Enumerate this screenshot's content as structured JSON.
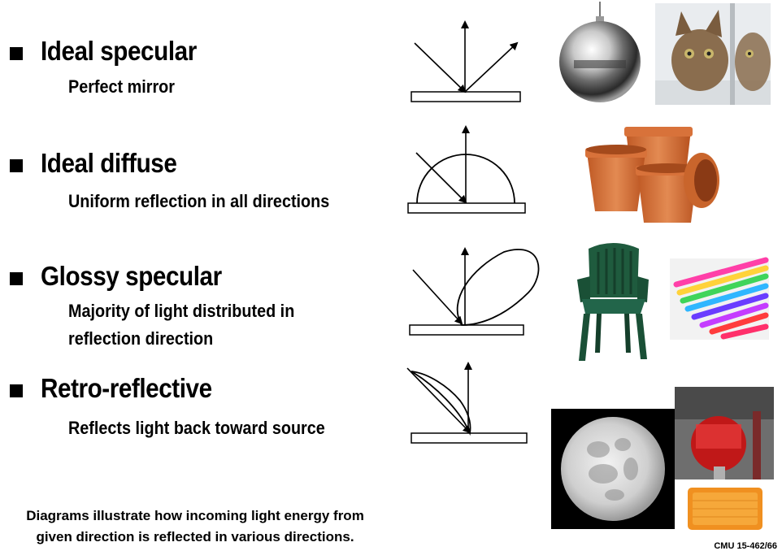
{
  "rows": [
    {
      "title": "Ideal specular",
      "subtitle": [
        "Perfect mirror"
      ]
    },
    {
      "title": "Ideal diffuse",
      "subtitle": [
        "Uniform reflection in all directions"
      ]
    },
    {
      "title": "Glossy specular",
      "subtitle": [
        "Majority of light distributed in",
        "reflection direction"
      ]
    },
    {
      "title": "Retro-reflective",
      "subtitle": [
        "Reflects light back toward source"
      ]
    }
  ],
  "caption": [
    "Diagrams illustrate how incoming light energy from",
    "given direction is reflected in various directions."
  ],
  "footer": "CMU 15-462/66",
  "photos": [
    "chrome-sphere-lamp",
    "kitten-mirror",
    "clay-pots",
    "plastic-chair",
    "acrylic-rods",
    "full-moon",
    "red-bike-reflector",
    "orange-reflector"
  ],
  "colors": {
    "terracotta": "#d8723a",
    "chair_green": "#1f5b3e",
    "moon_gray": "#cfcfcf"
  }
}
